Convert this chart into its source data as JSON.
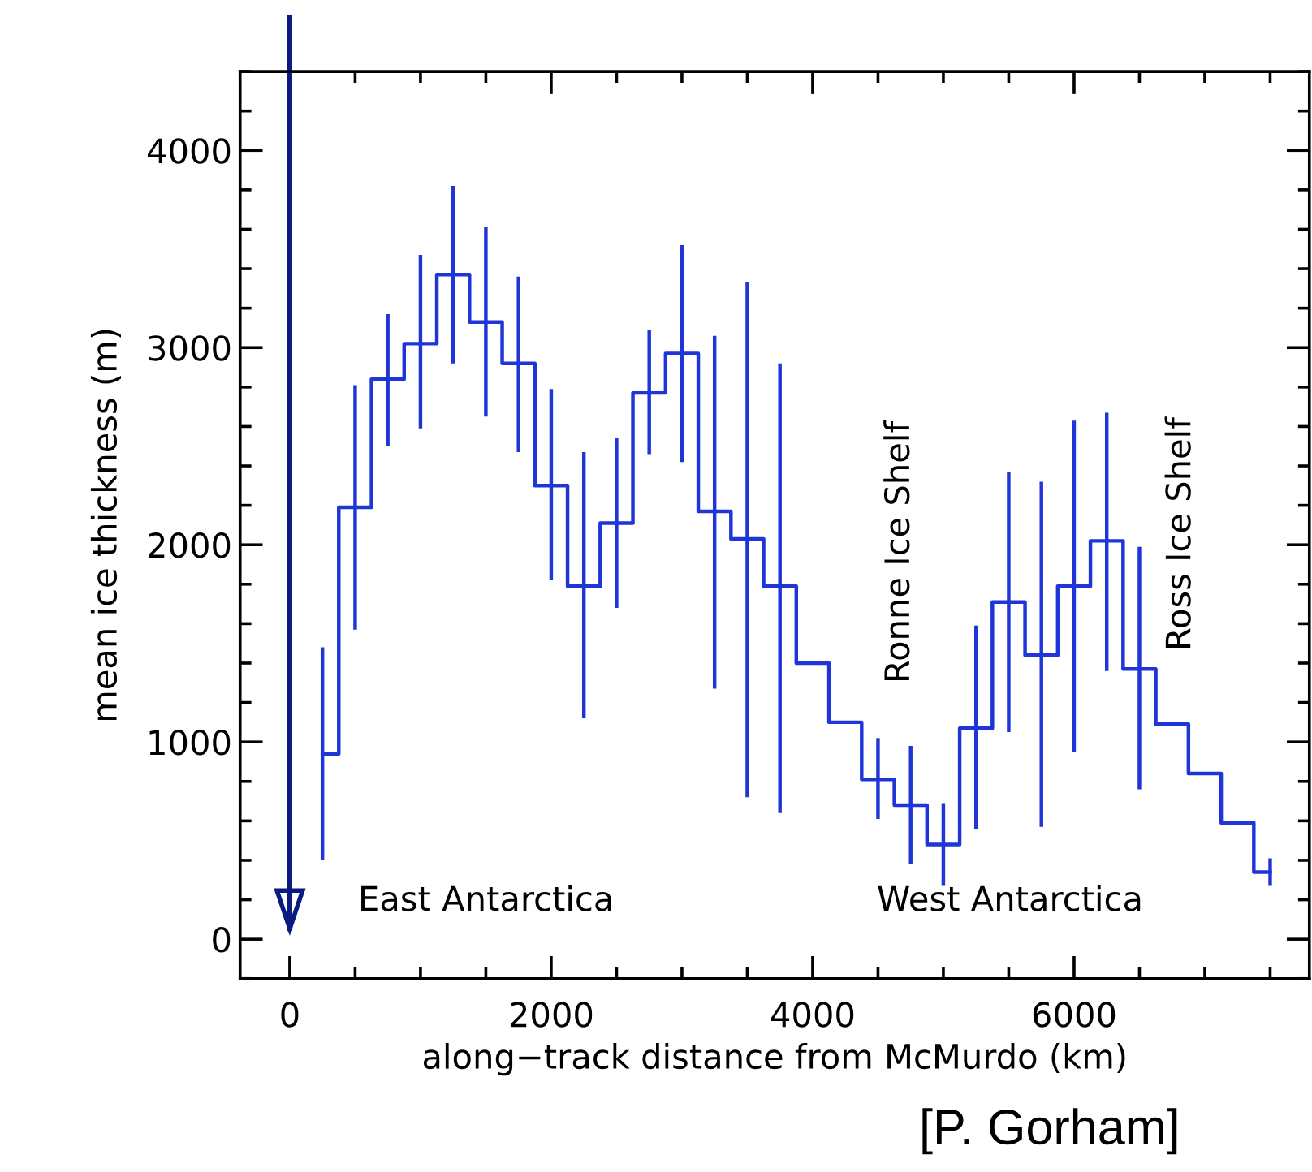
{
  "chart_data": {
    "type": "step",
    "xlabel": "along−track distance from McMurdo (km)",
    "ylabel": "mean ice thickness (m)",
    "x": [
      250,
      500,
      750,
      1000,
      1250,
      1500,
      1750,
      2000,
      2250,
      2500,
      2750,
      3000,
      3250,
      3500,
      3750,
      4000,
      4250,
      4500,
      4750,
      5000,
      5250,
      5500,
      5750,
      6000,
      6250,
      6500,
      6750,
      7000,
      7250,
      7500
    ],
    "series": [
      {
        "color": "#1f35d8",
        "values": [
          940,
          2190,
          2840,
          3020,
          3370,
          3130,
          2920,
          2300,
          1790,
          2110,
          2770,
          2970,
          2170,
          2030,
          1790,
          1400,
          1100,
          810,
          680,
          480,
          1070,
          1710,
          1440,
          1790,
          2020,
          1370,
          1090,
          840,
          590,
          340
        ],
        "errors": [
          [
            400,
            1480
          ],
          [
            1570,
            2810
          ],
          [
            2500,
            3170
          ],
          [
            2590,
            3470
          ],
          [
            2920,
            3820
          ],
          [
            2650,
            3610
          ],
          [
            2470,
            3360
          ],
          [
            1820,
            2790
          ],
          [
            1120,
            2470
          ],
          [
            1680,
            2540
          ],
          [
            2460,
            3090
          ],
          [
            2420,
            3520
          ],
          [
            1270,
            3060
          ],
          [
            720,
            3330
          ],
          [
            640,
            2920
          ],
          null,
          null,
          [
            610,
            1020
          ],
          [
            380,
            980
          ],
          [
            270,
            690
          ],
          [
            560,
            1590
          ],
          [
            1050,
            2370
          ],
          [
            570,
            2320
          ],
          [
            950,
            2630
          ],
          [
            1360,
            2670
          ],
          [
            760,
            1990
          ],
          null,
          null,
          null,
          [
            270,
            410
          ]
        ]
      }
    ],
    "xlim": [
      -380,
      7800
    ],
    "ylim": [
      -200,
      4400
    ],
    "xticks": [
      0,
      2000,
      4000,
      6000
    ],
    "yticks": [
      0,
      1000,
      2000,
      3000,
      4000
    ],
    "ref_lines": [
      {
        "axis": "x",
        "value": 0,
        "color": "#0a1a80"
      }
    ],
    "grid": false,
    "annotations": [
      "East Antarctica",
      "West Antarctica",
      "Ronne Ice Shelf",
      "Ross Ice Shelf",
      "[P. Gorham]"
    ]
  }
}
